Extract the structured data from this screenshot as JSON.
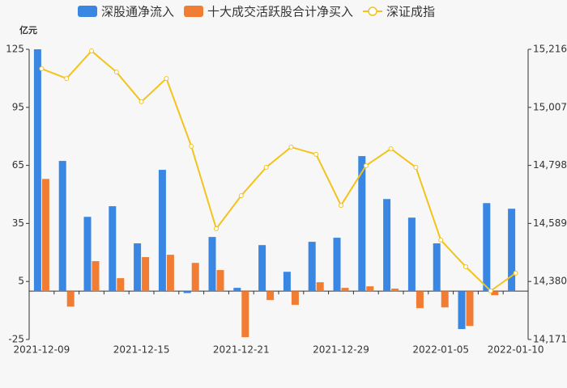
{
  "chart_data": {
    "type": "bar",
    "y_axis_label": "亿元",
    "categories": [
      "2021-12-09",
      null,
      null,
      null,
      "2021-12-15",
      null,
      null,
      null,
      "2021-12-21",
      null,
      null,
      null,
      "2021-12-29",
      null,
      null,
      null,
      "2022-01-05",
      null,
      null,
      "2022-01-10"
    ],
    "series": [
      {
        "name": "深股通净流入",
        "color": "#3a86e3",
        "values": [
          125,
          67.3,
          38.4,
          43.9,
          24.7,
          62.7,
          -1,
          28,
          1.7,
          23.8,
          10,
          25.5,
          27.6,
          69.8,
          47.6,
          38,
          24.7,
          -19.6,
          45.5,
          42.6
        ]
      },
      {
        "name": "十大成交活跃股合计净买入",
        "color": "#f07d33",
        "values": [
          58,
          -8,
          15.5,
          6.7,
          17.6,
          18.8,
          14.6,
          10.9,
          -23.8,
          -4.6,
          -7.1,
          4.6,
          1.7,
          2.5,
          1.3,
          -8.8,
          -8.4,
          -18,
          -2.1,
          null
        ]
      },
      {
        "name": "深证成指",
        "color": "#f2c31c",
        "type": "line",
        "axis": "y2",
        "values": [
          15146,
          15111,
          15210,
          15134,
          15027,
          15111,
          14867,
          14570,
          14689,
          14791,
          14864,
          14838,
          14654,
          14797,
          14858,
          14791,
          14529,
          14433,
          14346,
          14410
        ]
      }
    ],
    "ylim": [
      -25,
      125
    ],
    "yticks": [
      -25,
      5,
      35,
      65,
      95,
      125
    ],
    "y2lim": [
      14171,
      15216
    ],
    "y2ticks": [
      {
        "value": 14171,
        "label": "14,171"
      },
      {
        "value": 14380,
        "label": "14,380"
      },
      {
        "value": 14589,
        "label": "14,589"
      },
      {
        "value": 14798,
        "label": "14,798"
      },
      {
        "value": 15007,
        "label": "15,007"
      },
      {
        "value": 15216,
        "label": "15,216"
      }
    ],
    "legend": "top"
  }
}
